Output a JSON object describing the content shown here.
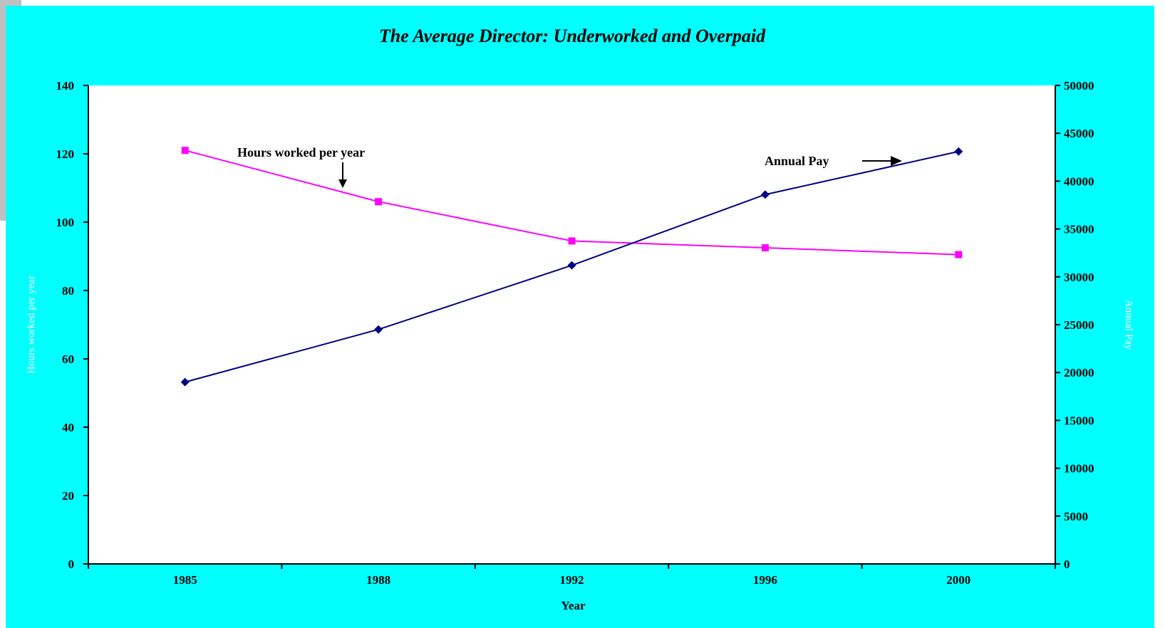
{
  "chart_data": {
    "type": "line",
    "title": "The Average Director: Underworked and Overpaid",
    "xlabel": "Year",
    "ylabel_left": "Hours worked per year",
    "ylabel_right": "Annual Pay",
    "categories": [
      "1985",
      "1988",
      "1992",
      "1996",
      "2000"
    ],
    "ylim_left": [
      0,
      140
    ],
    "yticks_left": [
      0,
      20,
      40,
      60,
      80,
      100,
      120,
      140
    ],
    "ylim_right": [
      0,
      50000
    ],
    "yticks_right": [
      0,
      5000,
      10000,
      15000,
      20000,
      25000,
      30000,
      35000,
      40000,
      45000,
      50000
    ],
    "series": [
      {
        "name": "Hours worked per year",
        "axis": "left",
        "color": "#ff00ff",
        "marker": "square",
        "values": [
          121,
          106,
          94.5,
          92.5,
          90.5
        ]
      },
      {
        "name": "Annual Pay",
        "axis": "right",
        "color": "#000080",
        "marker": "diamond",
        "values": [
          19000,
          24500,
          31200,
          38600,
          43100
        ]
      }
    ],
    "annotations": [
      {
        "text": "Hours worked per year",
        "target_series": 0,
        "target_index": 1
      },
      {
        "text": "Annual Pay",
        "target_series": 1,
        "target_index": 4
      }
    ],
    "grid": false,
    "background_color": "#00ffff",
    "plot_background_color": "#ffffff"
  }
}
